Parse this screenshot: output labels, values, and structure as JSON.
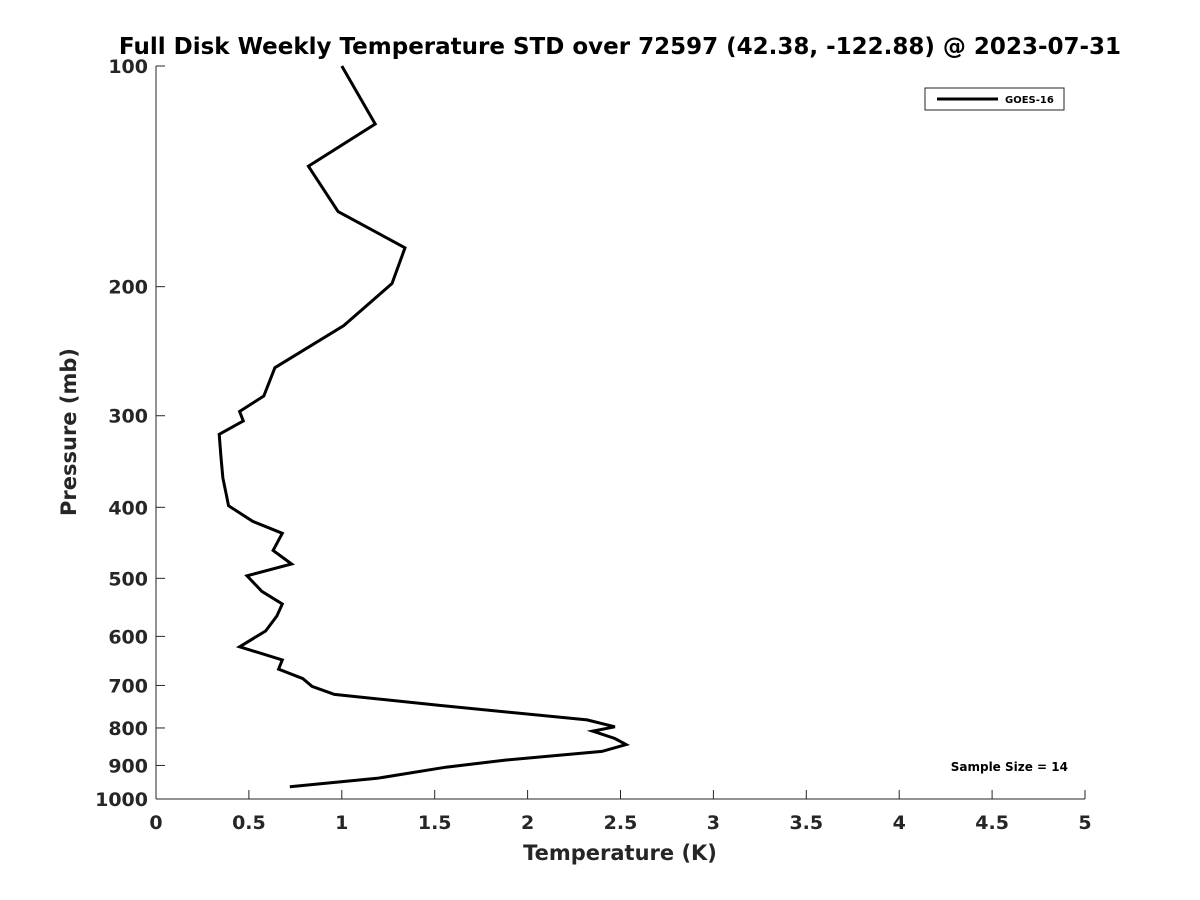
{
  "chart_data": {
    "type": "line",
    "title": "Full Disk Weekly Temperature STD over 72597 (42.38, -122.88) @ 2023-07-31",
    "xlabel": "Temperature (K)",
    "ylabel": "Pressure (mb)",
    "xlim": [
      0,
      5
    ],
    "ylim": [
      100,
      1000
    ],
    "y_scale": "log",
    "y_reversed": true,
    "x_ticks": [
      0,
      0.5,
      1,
      1.5,
      2,
      2.5,
      3,
      3.5,
      4,
      4.5,
      5
    ],
    "x_tick_labels": [
      "0",
      "0.5",
      "1",
      "1.5",
      "2",
      "2.5",
      "3",
      "3.5",
      "4",
      "4.5",
      "5"
    ],
    "y_ticks": [
      100,
      200,
      300,
      400,
      500,
      600,
      700,
      800,
      900,
      1000
    ],
    "y_tick_labels": [
      "100",
      "200",
      "300",
      "400",
      "500",
      "600",
      "700",
      "800",
      "900",
      "1000"
    ],
    "grid": false,
    "legend_position": "top-right",
    "annotation": "Sample Size = 14",
    "series": [
      {
        "name": "GOES-16",
        "color": "#000000",
        "x": [
          1.0,
          1.18,
          0.82,
          0.98,
          1.34,
          1.27,
          1.01,
          0.64,
          0.58,
          0.45,
          0.47,
          0.34,
          0.35,
          0.36,
          0.38,
          0.39,
          0.52,
          0.68,
          0.63,
          0.73,
          0.49,
          0.57,
          0.68,
          0.65,
          0.59,
          0.45,
          0.68,
          0.66,
          0.79,
          0.84,
          0.96,
          1.52,
          2.32,
          2.47,
          2.35,
          2.47,
          2.53,
          2.4,
          1.88,
          1.56,
          1.19,
          0.72
        ],
        "y": [
          100,
          120,
          137,
          158,
          177,
          198,
          226,
          258,
          282,
          296,
          305,
          318,
          342,
          365,
          386,
          398,
          418,
          434,
          458,
          478,
          496,
          521,
          542,
          563,
          590,
          620,
          646,
          665,
          685,
          702,
          720,
          745,
          780,
          797,
          808,
          827,
          843,
          861,
          885,
          905,
          937,
          962
        ]
      }
    ]
  }
}
